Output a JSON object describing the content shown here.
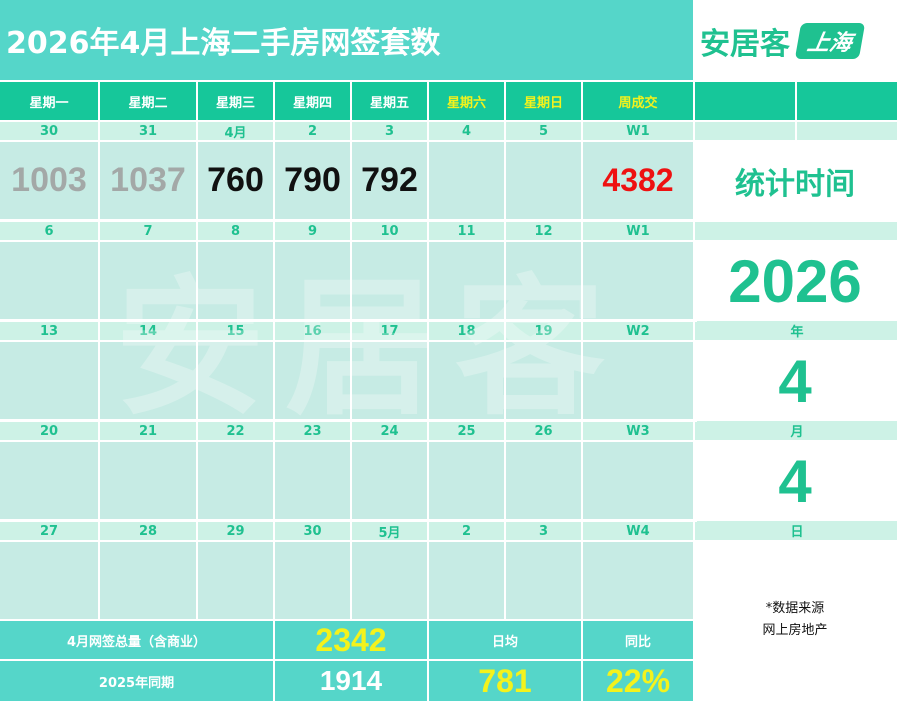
{
  "title": "2026年4月上海二手房网签套数",
  "logo": {
    "word": "安居客",
    "badge": "上海"
  },
  "header": {
    "days": [
      "星期一",
      "星期二",
      "星期三",
      "星期四",
      "星期五",
      "星期六",
      "星期日"
    ],
    "week_total": "周成交"
  },
  "weeks": [
    {
      "dates": [
        "30",
        "31",
        "4月",
        "2",
        "3",
        "4",
        "5"
      ],
      "week": "W1",
      "values": [
        "1003",
        "1037",
        "760",
        "790",
        "792",
        "",
        ""
      ],
      "week_total": "4382"
    },
    {
      "dates": [
        "6",
        "7",
        "8",
        "9",
        "10",
        "11",
        "12"
      ],
      "week": "W1",
      "values": [
        "",
        "",
        "",
        "",
        "",
        "",
        ""
      ],
      "week_total": ""
    },
    {
      "dates": [
        "13",
        "14",
        "15",
        "16",
        "17",
        "18",
        "19"
      ],
      "week": "W2",
      "values": [
        "",
        "",
        "",
        "",
        "",
        "",
        ""
      ],
      "week_total": ""
    },
    {
      "dates": [
        "20",
        "21",
        "22",
        "23",
        "24",
        "25",
        "26"
      ],
      "week": "W3",
      "values": [
        "",
        "",
        "",
        "",
        "",
        "",
        ""
      ],
      "week_total": ""
    },
    {
      "dates": [
        "27",
        "28",
        "29",
        "30",
        "5月",
        "2",
        "3"
      ],
      "week": "W4",
      "values": [
        "",
        "",
        "",
        "",
        "",
        "",
        ""
      ],
      "week_total": ""
    }
  ],
  "stats_time": {
    "label": "统计时间",
    "year": "2026",
    "year_label": "年",
    "month": "4",
    "month_label": "月",
    "day": "4",
    "day_label": "日"
  },
  "watermark": "安居客",
  "source": {
    "line1": "*数据来源",
    "line2": "网上房地产"
  },
  "footer": {
    "total_label": "4月网签总量（含商业）",
    "total_value": "2342",
    "daily_label": "日均",
    "yoy_label": "同比",
    "last_year_label": "2025年同期",
    "last_year_value": "1914",
    "daily_value": "781",
    "yoy_value": "22%"
  },
  "colors": {
    "title_bg": "#55d6c9",
    "header_bg": "#16c79a",
    "accent_green": "#1fc190",
    "weekend_yellow": "#f4f21c",
    "cell_bg": "#c6ebe4",
    "date_row_bg": "#cdf2e6",
    "red": "#ee1111"
  }
}
